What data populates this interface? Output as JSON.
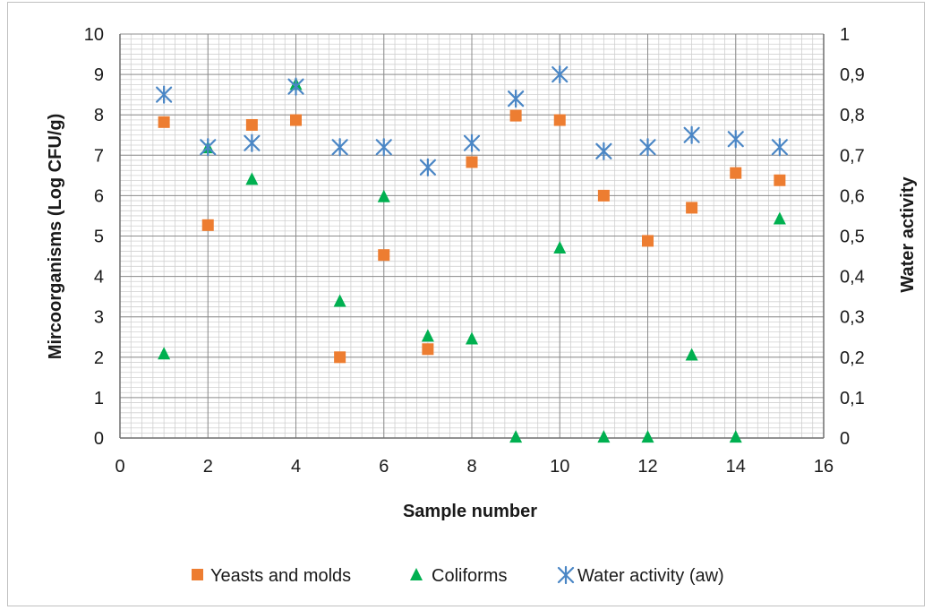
{
  "chart_data": {
    "type": "scatter",
    "xlabel": "Sample number",
    "ylabel": "Mircoorganisms  (Log CFU/g)",
    "y2label": "Water activity",
    "xlim": [
      0,
      16
    ],
    "ylim": [
      0,
      10
    ],
    "y2lim": [
      0,
      1
    ],
    "x_ticks": [
      "0",
      "2",
      "4",
      "6",
      "8",
      "10",
      "12",
      "14",
      "16"
    ],
    "y_ticks": [
      "0",
      "1",
      "2",
      "3",
      "4",
      "5",
      "6",
      "7",
      "8",
      "9",
      "10"
    ],
    "y2_ticks": [
      "0",
      "0,1",
      "0,2",
      "0,3",
      "0,4",
      "0,5",
      "0,6",
      "0,7",
      "0,8",
      "0,9",
      "1"
    ],
    "grid": true,
    "legend": "bottom",
    "series": [
      {
        "name": "Yeasts and molds",
        "marker": "square",
        "color": "#ed7d31",
        "axis": "left",
        "points": [
          [
            1,
            7.82
          ],
          [
            2,
            5.27
          ],
          [
            3,
            7.75
          ],
          [
            4,
            7.87
          ],
          [
            5,
            2.0
          ],
          [
            6,
            4.53
          ],
          [
            7,
            2.2
          ],
          [
            8,
            6.83
          ],
          [
            9,
            7.98
          ],
          [
            10,
            7.87
          ],
          [
            11,
            6.0
          ],
          [
            12,
            4.88
          ],
          [
            13,
            5.7
          ],
          [
            14,
            6.56
          ],
          [
            15,
            6.38
          ]
        ]
      },
      {
        "name": "Coliforms",
        "marker": "triangle",
        "color": "#00b050",
        "axis": "left",
        "points": [
          [
            1,
            2.08
          ],
          [
            2,
            7.18
          ],
          [
            3,
            6.4
          ],
          [
            4,
            8.75
          ],
          [
            5,
            3.38
          ],
          [
            6,
            5.97
          ],
          [
            7,
            2.52
          ],
          [
            8,
            2.45
          ],
          [
            9,
            0.02
          ],
          [
            10,
            4.7
          ],
          [
            11,
            0.02
          ],
          [
            12,
            0.02
          ],
          [
            13,
            2.05
          ],
          [
            14,
            0.02
          ],
          [
            15,
            5.42
          ]
        ]
      },
      {
        "name": "Water activity (aw)",
        "marker": "star",
        "color": "#4a86c5",
        "axis": "right",
        "points": [
          [
            1,
            0.85
          ],
          [
            2,
            0.72
          ],
          [
            3,
            0.73
          ],
          [
            4,
            0.87
          ],
          [
            5,
            0.72
          ],
          [
            6,
            0.72
          ],
          [
            7,
            0.67
          ],
          [
            8,
            0.73
          ],
          [
            9,
            0.84
          ],
          [
            10,
            0.9
          ],
          [
            11,
            0.71
          ],
          [
            12,
            0.72
          ],
          [
            13,
            0.75
          ],
          [
            14,
            0.74
          ],
          [
            15,
            0.72
          ]
        ]
      }
    ]
  }
}
